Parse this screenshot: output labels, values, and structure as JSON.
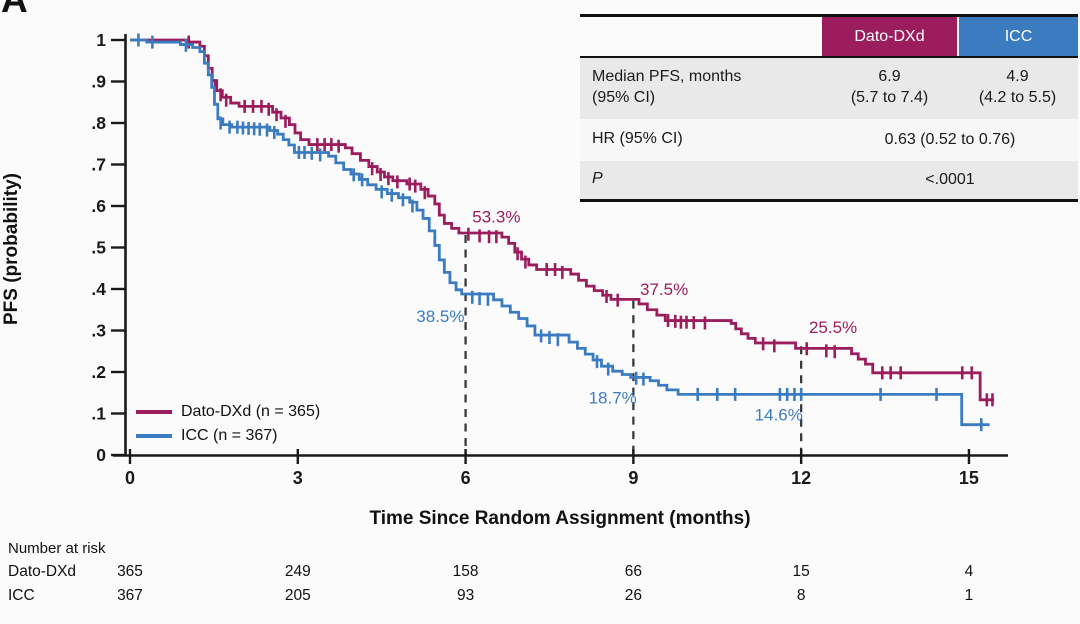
{
  "panel_label": "A",
  "colors": {
    "dato_dxd": "#9b1d5e",
    "icc": "#3b7cc1",
    "axis": "#1a1a1a",
    "dashed_line": "#3a3a3a",
    "table_row_gray": "#e9e9e9",
    "table_row_light": "#f7f7f7",
    "background": "#fbfbfb"
  },
  "stats_table": {
    "header": {
      "col_dato": "Dato-DXd",
      "col_icc": "ICC"
    },
    "median_row": {
      "label_line1": "Median PFS, months",
      "label_line2": "(95% CI)",
      "dato_value": "6.9",
      "dato_ci": "(5.7 to 7.4)",
      "icc_value": "4.9",
      "icc_ci": "(4.2 to 5.5)"
    },
    "hr_row": {
      "label": "HR (95% CI)",
      "value": "0.63 (0.52 to 0.76)"
    },
    "p_row": {
      "label": "P",
      "value": "<.0001"
    }
  },
  "chart_data": {
    "type": "line",
    "subtype": "kaplan-meier-step",
    "xlabel": "Time Since Random Assignment (months)",
    "ylabel": "PFS (probability)",
    "xlim": [
      0,
      15.7
    ],
    "ylim": [
      0,
      1
    ],
    "x_ticks": [
      {
        "v": 0,
        "label": "0"
      },
      {
        "v": 3,
        "label": "3"
      },
      {
        "v": 6,
        "label": "6"
      },
      {
        "v": 9,
        "label": "9"
      },
      {
        "v": 12,
        "label": "12"
      },
      {
        "v": 15,
        "label": "15"
      }
    ],
    "y_ticks": [
      {
        "v": 0,
        "label": "0"
      },
      {
        "v": 0.1,
        "label": ".1"
      },
      {
        "v": 0.2,
        "label": ".2"
      },
      {
        "v": 0.3,
        "label": ".3"
      },
      {
        "v": 0.4,
        "label": ".4"
      },
      {
        "v": 0.5,
        "label": ".5"
      },
      {
        "v": 0.6,
        "label": ".6"
      },
      {
        "v": 0.7,
        "label": ".7"
      },
      {
        "v": 0.8,
        "label": ".8"
      },
      {
        "v": 0.9,
        "label": ".9"
      },
      {
        "v": 1,
        "label": "1"
      }
    ],
    "dashed_reference_lines": [
      {
        "t": 6,
        "p_top": 0.53
      },
      {
        "t": 9,
        "p_top": 0.372
      },
      {
        "t": 12,
        "p_top": 0.262
      }
    ],
    "annotations": [
      {
        "text": "53.3%",
        "series": "dato_dxd",
        "t": 6.55,
        "p": 0.575
      },
      {
        "text": "38.5%",
        "series": "icc",
        "t": 5.55,
        "p": 0.335
      },
      {
        "text": "37.5%",
        "series": "dato_dxd",
        "t": 9.55,
        "p": 0.4
      },
      {
        "text": "18.7%",
        "series": "icc",
        "t": 8.63,
        "p": 0.139
      },
      {
        "text": "25.5%",
        "series": "dato_dxd",
        "t": 12.57,
        "p": 0.308
      },
      {
        "text": "14.6%",
        "series": "icc",
        "t": 11.6,
        "p": 0.098
      }
    ],
    "series": [
      {
        "name": "Dato-DXd",
        "n": 365,
        "legend_label": "Dato-DXd (n = 365)",
        "color_key": "dato_dxd",
        "end_t": 15.45,
        "points": [
          [
            0,
            1.0
          ],
          [
            1.05,
            0.995
          ],
          [
            1.25,
            0.985
          ],
          [
            1.33,
            0.962
          ],
          [
            1.4,
            0.932
          ],
          [
            1.47,
            0.902
          ],
          [
            1.55,
            0.878
          ],
          [
            1.65,
            0.862
          ],
          [
            1.8,
            0.848
          ],
          [
            1.95,
            0.84
          ],
          [
            2.55,
            0.826
          ],
          [
            2.7,
            0.812
          ],
          [
            2.85,
            0.796
          ],
          [
            2.95,
            0.776
          ],
          [
            3.05,
            0.76
          ],
          [
            3.2,
            0.748
          ],
          [
            3.85,
            0.74
          ],
          [
            3.97,
            0.726
          ],
          [
            4.12,
            0.71
          ],
          [
            4.27,
            0.695
          ],
          [
            4.42,
            0.682
          ],
          [
            4.55,
            0.67
          ],
          [
            4.7,
            0.661
          ],
          [
            4.95,
            0.653
          ],
          [
            5.2,
            0.64
          ],
          [
            5.33,
            0.624
          ],
          [
            5.45,
            0.605
          ],
          [
            5.53,
            0.578
          ],
          [
            5.62,
            0.558
          ],
          [
            5.75,
            0.546
          ],
          [
            5.88,
            0.535
          ],
          [
            6.65,
            0.525
          ],
          [
            6.77,
            0.51
          ],
          [
            6.88,
            0.489
          ],
          [
            7.0,
            0.472
          ],
          [
            7.13,
            0.458
          ],
          [
            7.27,
            0.447
          ],
          [
            7.88,
            0.436
          ],
          [
            8.02,
            0.421
          ],
          [
            8.16,
            0.407
          ],
          [
            8.3,
            0.396
          ],
          [
            8.45,
            0.385
          ],
          [
            8.6,
            0.375
          ],
          [
            9.1,
            0.364
          ],
          [
            9.25,
            0.35
          ],
          [
            9.42,
            0.337
          ],
          [
            9.57,
            0.324
          ],
          [
            10.75,
            0.317
          ],
          [
            10.83,
            0.304
          ],
          [
            10.93,
            0.292
          ],
          [
            11.05,
            0.281
          ],
          [
            11.18,
            0.27
          ],
          [
            11.9,
            0.257
          ],
          [
            12.9,
            0.244
          ],
          [
            13.02,
            0.231
          ],
          [
            13.15,
            0.219
          ],
          [
            13.28,
            0.198
          ],
          [
            15.2,
            0.133
          ]
        ],
        "censor_marks": [
          [
            1.05,
            0.995
          ],
          [
            1.52,
            0.89
          ],
          [
            1.62,
            0.868
          ],
          [
            1.72,
            0.855
          ],
          [
            2.05,
            0.84
          ],
          [
            2.2,
            0.84
          ],
          [
            2.35,
            0.84
          ],
          [
            2.48,
            0.833
          ],
          [
            2.62,
            0.82
          ],
          [
            2.78,
            0.804
          ],
          [
            3.35,
            0.748
          ],
          [
            3.48,
            0.748
          ],
          [
            3.6,
            0.748
          ],
          [
            3.73,
            0.744
          ],
          [
            4.33,
            0.69
          ],
          [
            4.48,
            0.676
          ],
          [
            4.62,
            0.666
          ],
          [
            4.78,
            0.658
          ],
          [
            5.0,
            0.653
          ],
          [
            5.1,
            0.648
          ],
          [
            5.27,
            0.632
          ],
          [
            6.05,
            0.532
          ],
          [
            6.25,
            0.528
          ],
          [
            6.42,
            0.526
          ],
          [
            6.55,
            0.526
          ],
          [
            6.93,
            0.485
          ],
          [
            7.07,
            0.465
          ],
          [
            7.45,
            0.447
          ],
          [
            7.6,
            0.447
          ],
          [
            7.73,
            0.44
          ],
          [
            8.52,
            0.382
          ],
          [
            8.72,
            0.373
          ],
          [
            9.62,
            0.324
          ],
          [
            9.75,
            0.322
          ],
          [
            9.85,
            0.32
          ],
          [
            9.95,
            0.32
          ],
          [
            10.08,
            0.319
          ],
          [
            10.28,
            0.318
          ],
          [
            11.32,
            0.268
          ],
          [
            11.52,
            0.263
          ],
          [
            12.1,
            0.256
          ],
          [
            12.45,
            0.251
          ],
          [
            12.6,
            0.249
          ],
          [
            13.45,
            0.198
          ],
          [
            13.6,
            0.198
          ],
          [
            13.78,
            0.198
          ],
          [
            14.88,
            0.198
          ],
          [
            15.05,
            0.198
          ],
          [
            15.32,
            0.133
          ],
          [
            15.42,
            0.133
          ]
        ]
      },
      {
        "name": "ICC",
        "n": 367,
        "legend_label": "ICC (n = 367)",
        "color_key": "icc",
        "end_t": 15.37,
        "points": [
          [
            0,
            1.0
          ],
          [
            0.3,
            0.995
          ],
          [
            0.9,
            0.989
          ],
          [
            1.12,
            0.982
          ],
          [
            1.25,
            0.972
          ],
          [
            1.33,
            0.944
          ],
          [
            1.4,
            0.916
          ],
          [
            1.46,
            0.886
          ],
          [
            1.51,
            0.845
          ],
          [
            1.57,
            0.81
          ],
          [
            1.66,
            0.796
          ],
          [
            1.82,
            0.79
          ],
          [
            2.5,
            0.782
          ],
          [
            2.64,
            0.773
          ],
          [
            2.74,
            0.76
          ],
          [
            2.84,
            0.747
          ],
          [
            2.94,
            0.729
          ],
          [
            3.55,
            0.72
          ],
          [
            3.68,
            0.704
          ],
          [
            3.82,
            0.688
          ],
          [
            3.95,
            0.677
          ],
          [
            4.1,
            0.664
          ],
          [
            4.25,
            0.651
          ],
          [
            4.4,
            0.64
          ],
          [
            4.6,
            0.63
          ],
          [
            4.8,
            0.62
          ],
          [
            5.0,
            0.609
          ],
          [
            5.13,
            0.59
          ],
          [
            5.24,
            0.57
          ],
          [
            5.35,
            0.54
          ],
          [
            5.45,
            0.505
          ],
          [
            5.53,
            0.47
          ],
          [
            5.62,
            0.44
          ],
          [
            5.72,
            0.415
          ],
          [
            5.83,
            0.398
          ],
          [
            5.93,
            0.388
          ],
          [
            6.5,
            0.374
          ],
          [
            6.65,
            0.359
          ],
          [
            6.8,
            0.344
          ],
          [
            6.95,
            0.329
          ],
          [
            7.1,
            0.311
          ],
          [
            7.24,
            0.289
          ],
          [
            7.85,
            0.272
          ],
          [
            8.0,
            0.257
          ],
          [
            8.14,
            0.243
          ],
          [
            8.28,
            0.229
          ],
          [
            8.43,
            0.214
          ],
          [
            8.63,
            0.202
          ],
          [
            8.8,
            0.194
          ],
          [
            8.95,
            0.187
          ],
          [
            9.3,
            0.179
          ],
          [
            9.45,
            0.168
          ],
          [
            9.6,
            0.157
          ],
          [
            9.8,
            0.146
          ],
          [
            14.87,
            0.073
          ]
        ],
        "censor_marks": [
          [
            0.15,
            1.0
          ],
          [
            0.4,
            0.995
          ],
          [
            1.0,
            0.987
          ],
          [
            1.62,
            0.8
          ],
          [
            1.78,
            0.79
          ],
          [
            1.92,
            0.79
          ],
          [
            2.02,
            0.788
          ],
          [
            2.12,
            0.787
          ],
          [
            2.22,
            0.786
          ],
          [
            2.32,
            0.785
          ],
          [
            2.45,
            0.783
          ],
          [
            2.58,
            0.777
          ],
          [
            3.02,
            0.729
          ],
          [
            3.12,
            0.729
          ],
          [
            3.25,
            0.727
          ],
          [
            3.4,
            0.723
          ],
          [
            4.0,
            0.675
          ],
          [
            4.15,
            0.663
          ],
          [
            4.5,
            0.634
          ],
          [
            4.68,
            0.626
          ],
          [
            4.88,
            0.615
          ],
          [
            5.05,
            0.6
          ],
          [
            6.12,
            0.38
          ],
          [
            6.25,
            0.377
          ],
          [
            6.4,
            0.375
          ],
          [
            7.35,
            0.287
          ],
          [
            7.5,
            0.283
          ],
          [
            7.65,
            0.278
          ],
          [
            8.35,
            0.225
          ],
          [
            8.55,
            0.207
          ],
          [
            9.05,
            0.185
          ],
          [
            9.18,
            0.183
          ],
          [
            10.15,
            0.146
          ],
          [
            10.5,
            0.146
          ],
          [
            10.82,
            0.146
          ],
          [
            11.62,
            0.146
          ],
          [
            11.75,
            0.146
          ],
          [
            11.88,
            0.146
          ],
          [
            12.0,
            0.146
          ],
          [
            13.42,
            0.146
          ],
          [
            14.42,
            0.146
          ],
          [
            15.22,
            0.073
          ]
        ]
      }
    ],
    "risk_table": {
      "title": "Number at risk",
      "times": [
        0,
        3,
        6,
        9,
        12,
        15
      ],
      "rows": [
        {
          "label": "Dato-DXd",
          "values": [
            365,
            249,
            158,
            66,
            15,
            4
          ]
        },
        {
          "label": "ICC",
          "values": [
            367,
            205,
            93,
            26,
            8,
            1
          ]
        }
      ]
    }
  }
}
